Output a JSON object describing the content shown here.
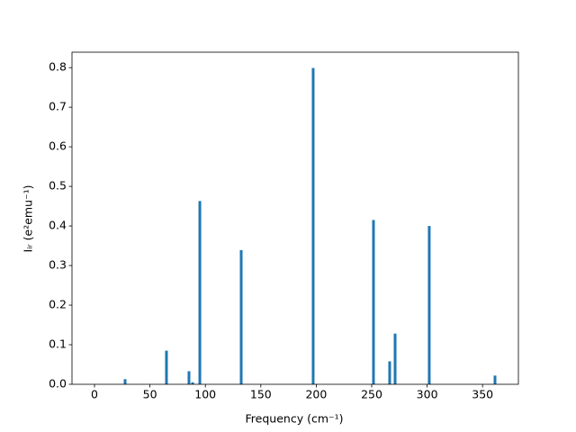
{
  "chart_data": {
    "type": "bar",
    "x": [
      27.6,
      64.9,
      85.2,
      88.5,
      95.0,
      132.3,
      197.2,
      251.6,
      266.2,
      271.1,
      301.9,
      361.2
    ],
    "values": [
      0.013,
      0.085,
      0.033,
      0.005,
      0.463,
      0.339,
      0.799,
      0.415,
      0.058,
      0.128,
      0.4,
      0.022
    ],
    "color": "#1f77b4",
    "xlabel": "Frequency (cm⁻¹)",
    "ylabel": "Iᵢᵣ (e²emu⁻¹)",
    "xlim": [
      -20.3,
      382.3
    ],
    "ylim": [
      0,
      0.839
    ],
    "xticks": [
      0,
      50,
      100,
      150,
      200,
      250,
      300,
      350
    ],
    "yticks": [
      {
        "value": 0,
        "label": "0.0"
      },
      0.1,
      0.2,
      0.3,
      0.4,
      0.5,
      0.6,
      0.7,
      0.8
    ],
    "grid": false
  }
}
